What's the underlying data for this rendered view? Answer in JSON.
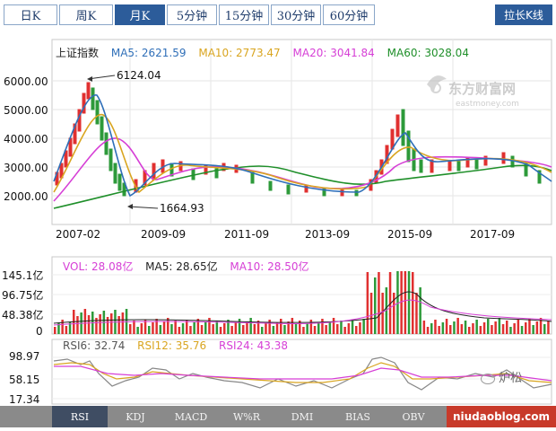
{
  "period_tabs": [
    {
      "label": "日K",
      "active": false
    },
    {
      "label": "周K",
      "active": false
    },
    {
      "label": "月K",
      "active": true
    },
    {
      "label": "5分钟",
      "active": false
    },
    {
      "label": "15分钟",
      "active": false
    },
    {
      "label": "30分钟",
      "active": false
    },
    {
      "label": "60分钟",
      "active": false
    }
  ],
  "stretch_button": "拉长K线",
  "main_chart": {
    "stock_name": "上证指数",
    "ma": [
      {
        "label": "MA5: 2621.59",
        "color": "#2f6fb8"
      },
      {
        "label": "MA10: 2773.47",
        "color": "#d9a520"
      },
      {
        "label": "MA20: 3041.84",
        "color": "#d63fd6"
      },
      {
        "label": "MA60: 3028.04",
        "color": "#1f8f2a"
      }
    ],
    "y_ticks": [
      "6000.00",
      "5000.00",
      "4000.00",
      "3000.00",
      "2000.00"
    ],
    "x_ticks": [
      "2007-02",
      "2009-09",
      "2011-09",
      "2013-09",
      "2015-09",
      "2017-09"
    ],
    "high_annotation": "6124.04",
    "low_annotation": "1664.93",
    "watermark_name": "东方财富网",
    "watermark_url": "eastmoney.com"
  },
  "volume_chart": {
    "y_ticks": [
      "145.1亿",
      "96.75亿",
      "48.38亿",
      "0"
    ],
    "legend": [
      {
        "label": "VOL: 28.08亿",
        "color": "#d63fd6"
      },
      {
        "label": "MA5: 28.65亿",
        "color": "#222222"
      },
      {
        "label": "MA10: 28.50亿",
        "color": "#d63fd6"
      }
    ]
  },
  "rsi_chart": {
    "y_ticks": [
      "98.97",
      "58.15",
      "17.34"
    ],
    "legend": [
      {
        "label": "RSI6: 32.74",
        "color": "#555555"
      },
      {
        "label": "RSI12: 35.76",
        "color": "#d9a520"
      },
      {
        "label": "RSI24: 43.38",
        "color": "#d63fd6"
      }
    ]
  },
  "indicator_tabs": [
    {
      "label": "RSI",
      "active": true
    },
    {
      "label": "KDJ",
      "active": false
    },
    {
      "label": "MACD",
      "active": false
    },
    {
      "label": "W%R",
      "active": false
    },
    {
      "label": "DMI",
      "active": false
    },
    {
      "label": "BIAS",
      "active": false
    },
    {
      "label": "OBV",
      "active": false
    }
  ],
  "watermark_corner": {
    "wechat_name": "炉松",
    "site": "niudaoblog.com"
  }
}
